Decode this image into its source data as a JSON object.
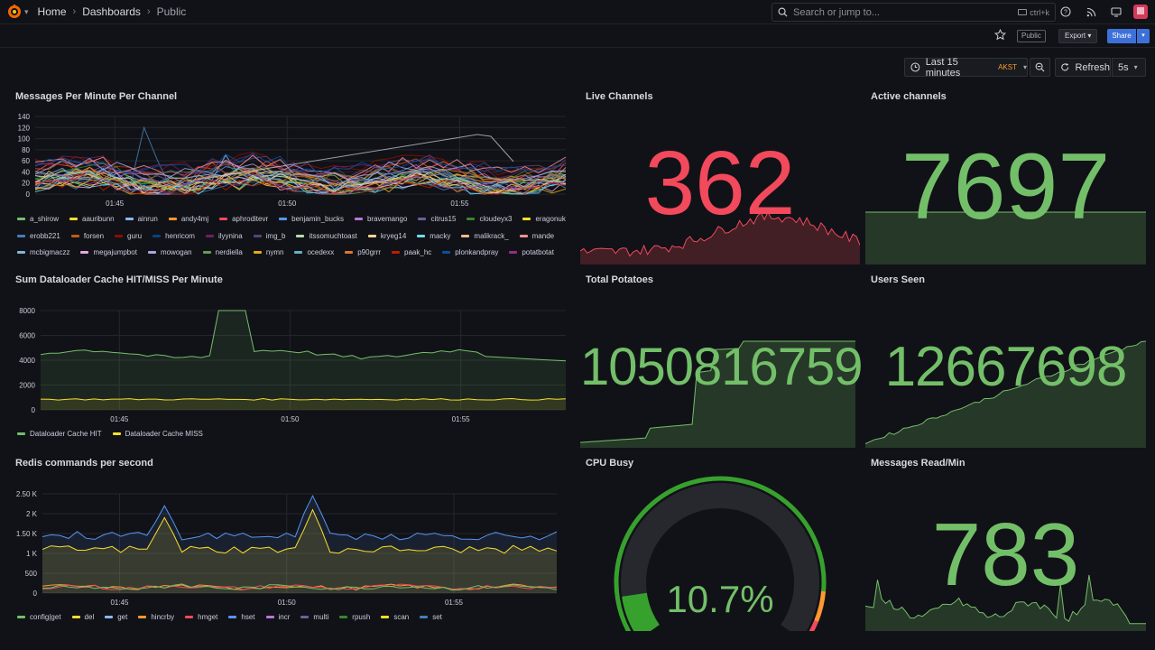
{
  "topbar": {
    "breadcrumbs": [
      "Home",
      "Dashboards",
      "Public"
    ],
    "search_placeholder": "Search or jump to...",
    "search_shortcut": "ctrl+k"
  },
  "toolbar": {
    "public_badge": "Public",
    "export_label": "Export",
    "share_label": "Share"
  },
  "time": {
    "range_label": "Last 15 minutes",
    "timezone": "AKST",
    "refresh_label": "Refresh",
    "interval": "5s"
  },
  "colors": {
    "green": "#73bf69",
    "red": "#f2495c",
    "yellow": "#fade2a",
    "blue": "#5794f2",
    "orange": "#ff9830",
    "purple": "#b877d9"
  },
  "panels": {
    "messages": {
      "title": "Messages Per Minute Per Channel",
      "y_ticks": [
        "140",
        "120",
        "100",
        "80",
        "60",
        "40",
        "20",
        "0"
      ],
      "x_ticks": [
        "01:45",
        "01:50",
        "01:55"
      ],
      "legend": [
        {
          "name": "a_shirow",
          "color": "#73bf69"
        },
        {
          "name": "aauribunn",
          "color": "#fade2a"
        },
        {
          "name": "ainrun",
          "color": "#8ab8ff"
        },
        {
          "name": "andy4mj",
          "color": "#ff9830"
        },
        {
          "name": "aphroditevr",
          "color": "#f2495c"
        },
        {
          "name": "benjamin_bucks",
          "color": "#5794f2"
        },
        {
          "name": "bravemango",
          "color": "#b877d9"
        },
        {
          "name": "citrus15",
          "color": "#705da0"
        },
        {
          "name": "cloudeyx3",
          "color": "#37872d"
        },
        {
          "name": "eragonuk",
          "color": "#fade2a"
        },
        {
          "name": "erobb221",
          "color": "#447ebc"
        },
        {
          "name": "forsen",
          "color": "#c15c17"
        },
        {
          "name": "guru",
          "color": "#890f02"
        },
        {
          "name": "henricom",
          "color": "#0a437c"
        },
        {
          "name": "ilyynina",
          "color": "#6d1f62"
        },
        {
          "name": "img_b",
          "color": "#584477"
        },
        {
          "name": "itssomuchtoast",
          "color": "#b7dbab"
        },
        {
          "name": "kryeg14",
          "color": "#f4d598"
        },
        {
          "name": "macky",
          "color": "#70dbed"
        },
        {
          "name": "malikrack_",
          "color": "#f9ba8f"
        },
        {
          "name": "mande",
          "color": "#f29191"
        },
        {
          "name": "mcbigmaczz",
          "color": "#82b5d8"
        },
        {
          "name": "megajumpbot",
          "color": "#e5a8e2"
        },
        {
          "name": "mowogan",
          "color": "#aea2e0"
        },
        {
          "name": "nerdiella",
          "color": "#629e51"
        },
        {
          "name": "nymn",
          "color": "#e5ac0e"
        },
        {
          "name": "ocedexx",
          "color": "#64b0c8"
        },
        {
          "name": "p90grrr",
          "color": "#e0752d"
        },
        {
          "name": "paak_hc",
          "color": "#bf1b00"
        },
        {
          "name": "plonkandpray",
          "color": "#0a50a1"
        },
        {
          "name": "potatbotat",
          "color": "#962d82"
        }
      ]
    },
    "live": {
      "title": "Live Channels",
      "value": "362"
    },
    "active": {
      "title": "Active channels",
      "value": "7697"
    },
    "dataloader": {
      "title": "Sum Dataloader Cache HIT/MISS Per Minute",
      "y_ticks": [
        "8000",
        "6000",
        "4000",
        "2000",
        "0"
      ],
      "x_ticks": [
        "01:45",
        "01:50",
        "01:55"
      ],
      "legend": [
        {
          "name": "Dataloader Cache HIT",
          "color": "#73bf69"
        },
        {
          "name": "Dataloader Cache MISS",
          "color": "#fade2a"
        }
      ]
    },
    "potatoes": {
      "title": "Total Potatoes",
      "value": "1050816759"
    },
    "users": {
      "title": "Users Seen",
      "value": "12667698"
    },
    "redis": {
      "title": "Redis commands per second",
      "y_ticks": [
        "2.50 K",
        "2 K",
        "1.50 K",
        "1 K",
        "500",
        "0"
      ],
      "x_ticks": [
        "01:45",
        "01:50",
        "01:55"
      ],
      "legend": [
        {
          "name": "config|get",
          "color": "#73bf69"
        },
        {
          "name": "del",
          "color": "#fade2a"
        },
        {
          "name": "get",
          "color": "#8ab8ff"
        },
        {
          "name": "hincrby",
          "color": "#ff9830"
        },
        {
          "name": "hmget",
          "color": "#f2495c"
        },
        {
          "name": "hset",
          "color": "#5794f2"
        },
        {
          "name": "incr",
          "color": "#b877d9"
        },
        {
          "name": "multi",
          "color": "#705da0"
        },
        {
          "name": "rpush",
          "color": "#37872d"
        },
        {
          "name": "scan",
          "color": "#fade2a"
        },
        {
          "name": "set",
          "color": "#447ebc"
        }
      ]
    },
    "cpu": {
      "title": "CPU Busy",
      "value": "10.7%",
      "percent": 10.7
    },
    "readmin": {
      "title": "Messages Read/Min",
      "value": "783"
    }
  }
}
